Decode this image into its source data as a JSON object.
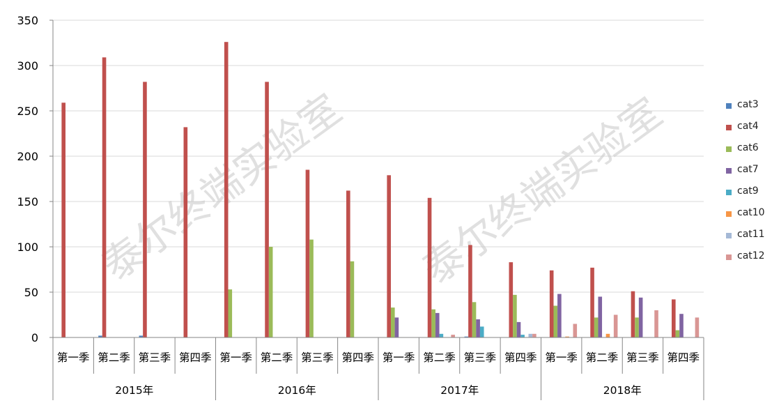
{
  "chart_data": {
    "type": "bar",
    "ylim": [
      0,
      350
    ],
    "yticks": [
      0,
      50,
      100,
      150,
      200,
      250,
      300,
      350
    ],
    "grid": true,
    "legend_position": "right",
    "watermark": [
      "泰尔终端实验室",
      "泰尔终端实验室"
    ],
    "years": [
      "2015年",
      "2016年",
      "2017年",
      "2018年"
    ],
    "categories": [
      "第一季",
      "第二季",
      "第三季",
      "第四季",
      "第一季",
      "第二季",
      "第三季",
      "第四季",
      "第一季",
      "第二季",
      "第三季",
      "第四季",
      "第一季",
      "第二季",
      "第三季",
      "第四季"
    ],
    "series": [
      {
        "name": "cat3",
        "color": "#4f81bd",
        "values": [
          0,
          2,
          2,
          0,
          0,
          0,
          0,
          0,
          0,
          0,
          1,
          0,
          0,
          0,
          0,
          0
        ]
      },
      {
        "name": "cat4",
        "color": "#c0504d",
        "values": [
          259,
          309,
          282,
          232,
          326,
          282,
          185,
          162,
          179,
          154,
          102,
          83,
          74,
          77,
          51,
          42
        ]
      },
      {
        "name": "cat6",
        "color": "#9bbb59",
        "values": [
          0,
          0,
          0,
          0,
          53,
          100,
          108,
          84,
          33,
          31,
          39,
          47,
          35,
          22,
          22,
          8
        ]
      },
      {
        "name": "cat7",
        "color": "#8064a2",
        "values": [
          0,
          0,
          0,
          0,
          0,
          0,
          0,
          0,
          22,
          27,
          20,
          17,
          48,
          45,
          44,
          26
        ]
      },
      {
        "name": "cat9",
        "color": "#4bacc6",
        "values": [
          0,
          0,
          0,
          0,
          0,
          0,
          0,
          0,
          0,
          4,
          12,
          3,
          0,
          0,
          0,
          0
        ]
      },
      {
        "name": "cat10",
        "color": "#f79646",
        "values": [
          0,
          0,
          0,
          0,
          0,
          0,
          0,
          0,
          0,
          0,
          0,
          0,
          1,
          4,
          0,
          0
        ]
      },
      {
        "name": "cat11",
        "color": "#a5b9d6",
        "values": [
          0,
          0,
          0,
          0,
          0,
          0,
          0,
          0,
          0,
          0,
          0,
          4,
          0,
          0,
          0,
          0
        ]
      },
      {
        "name": "cat12",
        "color": "#d99694",
        "values": [
          0,
          0,
          0,
          0,
          0,
          0,
          0,
          0,
          0,
          3,
          0,
          4,
          15,
          25,
          30,
          22
        ]
      }
    ]
  }
}
